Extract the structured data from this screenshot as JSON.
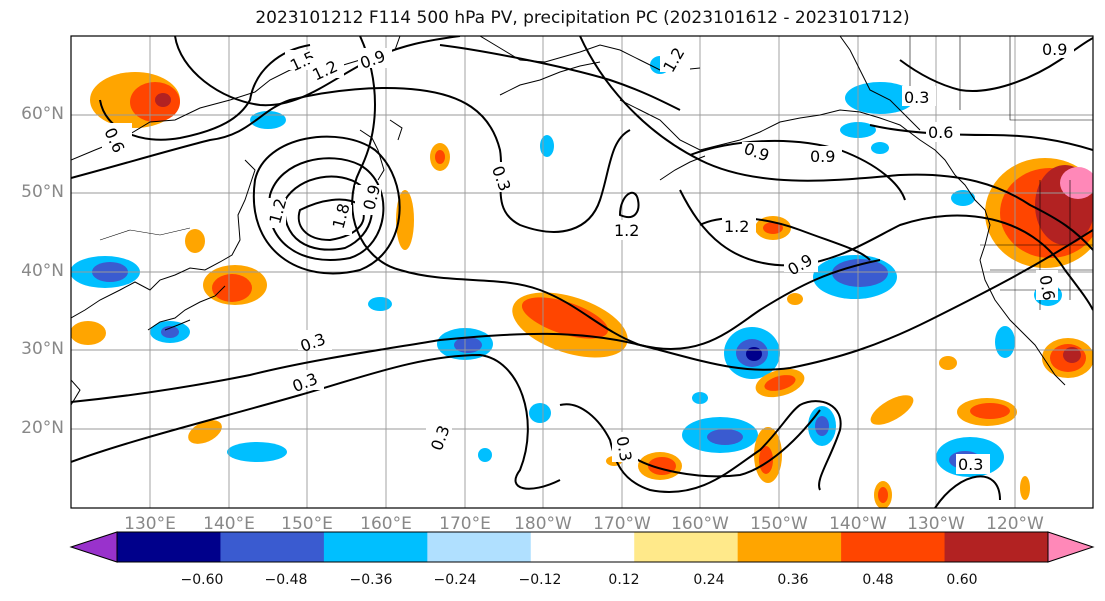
{
  "title": "2023101212 F114 500 hPa PV, precipitation PC (2023101612 - 2023101712)",
  "lat_labels": [
    "60°N",
    "50°N",
    "40°N",
    "30°N",
    "20°N"
  ],
  "lon_labels": [
    "130°E",
    "140°E",
    "150°E",
    "160°E",
    "170°E",
    "180°W",
    "170°W",
    "160°W",
    "150°W",
    "140°W",
    "130°W",
    "120°W"
  ],
  "contour_labels": [
    "1.5",
    "1.2",
    "0.9",
    "0.6",
    "1.2",
    "1.8",
    "0.9",
    "0.3",
    "1.2",
    "1.2",
    "0.9",
    "0.9",
    "0.3",
    "0.6",
    "0.3",
    "0.9",
    "0.6",
    "0.3",
    "0.3",
    "0.3",
    "0.3",
    "0.3",
    "0.3",
    "0.6",
    "0.9"
  ],
  "colorbar": {
    "ticks": [
      "−0.60",
      "−0.48",
      "−0.36",
      "−0.24",
      "−0.12",
      "0.12",
      "0.24",
      "0.36",
      "0.48",
      "0.60"
    ],
    "colors": [
      "#9932cc",
      "#00008b",
      "#3a5bd0",
      "#00bfff",
      "#b0e0ff",
      "#ffffff",
      "#ffe98a",
      "#ffa500",
      "#ff4500",
      "#b22222",
      "#ff88b8"
    ]
  }
}
